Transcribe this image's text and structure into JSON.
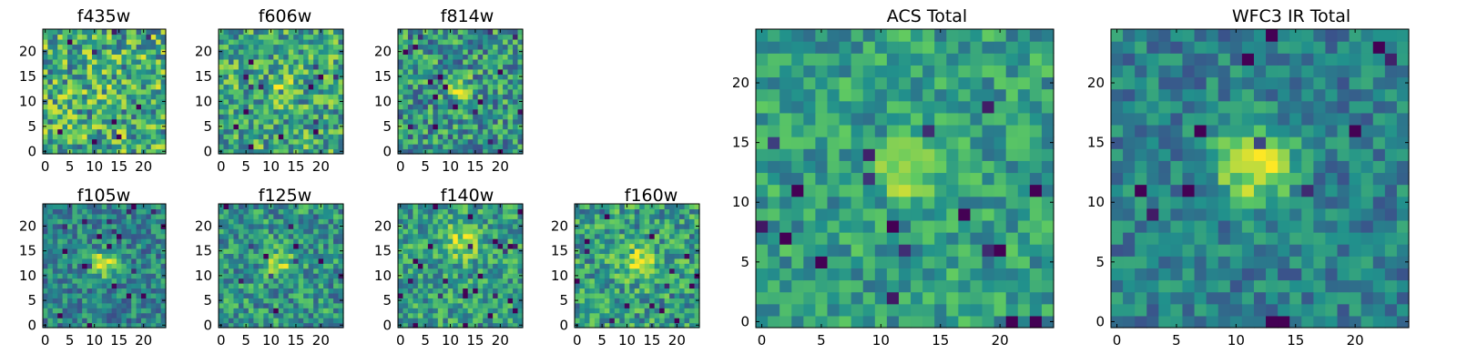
{
  "colormap": [
    "#440154",
    "#3b528b",
    "#21918c",
    "#5ec962",
    "#fde725"
  ],
  "frame_color": "#000000",
  "chart_data": [
    {
      "type": "heatmap",
      "title": "f435w",
      "grid": 25,
      "xticks": [
        0,
        5,
        10,
        15,
        20
      ],
      "yticks": [
        0,
        5,
        10,
        15,
        20
      ],
      "peak": [
        12,
        12
      ],
      "peak_strength": 0.05,
      "peak_sigma": 2.0,
      "noise": 0.34,
      "base": 0.62,
      "seed": 11
    },
    {
      "type": "heatmap",
      "title": "f606w",
      "grid": 25,
      "xticks": [
        0,
        5,
        10,
        15,
        20
      ],
      "yticks": [
        0,
        5,
        10,
        15,
        20
      ],
      "peak": [
        12,
        12.5
      ],
      "peak_strength": 0.35,
      "peak_sigma": 1.5,
      "noise": 0.3,
      "base": 0.6,
      "seed": 23
    },
    {
      "type": "heatmap",
      "title": "f814w",
      "grid": 25,
      "xticks": [
        0,
        5,
        10,
        15,
        20
      ],
      "yticks": [
        0,
        5,
        10,
        15,
        20
      ],
      "peak": [
        12,
        12.5
      ],
      "peak_strength": 0.45,
      "peak_sigma": 1.5,
      "noise": 0.3,
      "base": 0.52,
      "seed": 37
    },
    {
      "type": "heatmap",
      "title": "f105w",
      "grid": 25,
      "xticks": [
        0,
        5,
        10,
        15,
        20
      ],
      "yticks": [
        0,
        5,
        10,
        15,
        20
      ],
      "peak": [
        12,
        12.5
      ],
      "peak_strength": 0.5,
      "peak_sigma": 1.8,
      "noise": 0.22,
      "base": 0.45,
      "seed": 41
    },
    {
      "type": "heatmap",
      "title": "f125w",
      "grid": 25,
      "xticks": [
        0,
        5,
        10,
        15,
        20
      ],
      "yticks": [
        0,
        5,
        10,
        15,
        20
      ],
      "peak": [
        12,
        12.5
      ],
      "peak_strength": 0.3,
      "peak_sigma": 2.0,
      "noise": 0.25,
      "base": 0.52,
      "seed": 53
    },
    {
      "type": "heatmap",
      "title": "f140w",
      "grid": 25,
      "xticks": [
        0,
        5,
        10,
        15,
        20
      ],
      "yticks": [
        0,
        5,
        10,
        15,
        20
      ],
      "peak": [
        12,
        17
      ],
      "peak_strength": 0.3,
      "peak_sigma": 2.5,
      "noise": 0.24,
      "base": 0.56,
      "seed": 67
    },
    {
      "type": "heatmap",
      "title": "f160w",
      "grid": 25,
      "xticks": [
        0,
        5,
        10,
        15,
        20
      ],
      "yticks": [
        0,
        5,
        10,
        15,
        20
      ],
      "peak": [
        12,
        13.5
      ],
      "peak_strength": 0.4,
      "peak_sigma": 2.2,
      "noise": 0.26,
      "base": 0.56,
      "seed": 71
    },
    {
      "type": "heatmap",
      "title": "ACS Total",
      "grid": 25,
      "xticks": [
        0,
        5,
        10,
        15,
        20
      ],
      "yticks": [
        0,
        5,
        10,
        15,
        20
      ],
      "peak": [
        12,
        13
      ],
      "peak_strength": 0.45,
      "peak_sigma": 1.4,
      "noise": 0.2,
      "base": 0.56,
      "seed": 83
    },
    {
      "type": "heatmap",
      "title": "WFC3 IR Total",
      "grid": 25,
      "xticks": [
        0,
        5,
        10,
        15,
        20
      ],
      "yticks": [
        0,
        5,
        10,
        15,
        20
      ],
      "peak": [
        11.5,
        13
      ],
      "peak_strength": 0.55,
      "peak_sigma": 2.2,
      "noise": 0.18,
      "base": 0.43,
      "seed": 97
    }
  ]
}
